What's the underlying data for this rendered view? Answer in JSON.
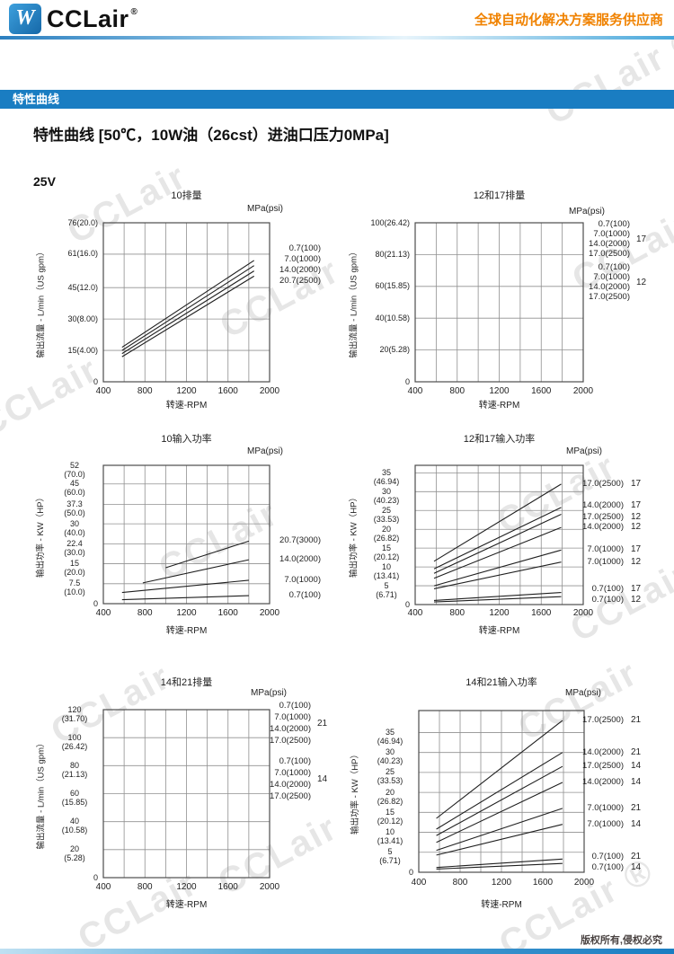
{
  "header": {
    "brand": "CCLair",
    "reg_mark": "®",
    "logo_glyph": "W",
    "tagline": "全球自动化解决方案服务供应商",
    "tagline_color": "#f08200",
    "bar_color": "#1a7dc2"
  },
  "section_bar": {
    "title": "特性曲线"
  },
  "content": {
    "page_title": "特性曲线 [50℃，10W油（26cst）进油口压力0MPa]",
    "model_label": "25V"
  },
  "watermark": {
    "text": "CCLair",
    "reg_mark": "®"
  },
  "footer": {
    "copyright": "版权所有,侵权必究"
  },
  "chart_data": [
    {
      "type": "line",
      "title": "10排量",
      "pressure_unit": "MPa(psi)",
      "xlabel": "转速-RPM",
      "ylabel": "输出流量 - L/min（US gpm）",
      "xlim": [
        400,
        2000
      ],
      "x_grid_step": 200,
      "x_ticks": [
        {
          "v": 400,
          "label": "400"
        },
        {
          "v": 800,
          "label": "800"
        },
        {
          "v": 1200,
          "label": "1200"
        },
        {
          "v": 1600,
          "label": "1600"
        },
        {
          "v": 2000,
          "label": "2000"
        }
      ],
      "ylim": [
        0,
        76
      ],
      "y_ticks": [
        {
          "v": 76,
          "label": "76(20.0)"
        },
        {
          "v": 61,
          "label": "61(16.0)"
        },
        {
          "v": 45,
          "label": "45(12.0)"
        },
        {
          "v": 30,
          "label": "30(8.00)"
        },
        {
          "v": 15,
          "label": "15(4.00)"
        },
        {
          "v": 0,
          "label": "0"
        }
      ],
      "series": [
        {
          "label": "0.7(100)",
          "points": [
            [
              580,
              16.5
            ],
            [
              1850,
              58.0
            ]
          ]
        },
        {
          "label": "7.0(1000)",
          "points": [
            [
              580,
              15.0
            ],
            [
              1850,
              55.5
            ]
          ]
        },
        {
          "label": "14.0(2000)",
          "points": [
            [
              580,
              13.5
            ],
            [
              1850,
              53.0
            ]
          ]
        },
        {
          "label": "20.7(2500)",
          "points": [
            [
              580,
              12.0
            ],
            [
              1850,
              50.5
            ]
          ]
        }
      ],
      "legend": {
        "style": "stack",
        "entries": [
          "0.7(100)",
          "7.0(1000)",
          "14.0(2000)",
          "20.7(2500)"
        ]
      }
    },
    {
      "type": "line",
      "title": "12和17排量",
      "pressure_unit": "MPa(psi)",
      "xlabel": "转速-RPM",
      "ylabel": "输出流量 - L/min（US gpm）",
      "xlim": [
        400,
        2000
      ],
      "x_grid_step": 200,
      "x_ticks": [
        {
          "v": 400,
          "label": "400"
        },
        {
          "v": 800,
          "label": "800"
        },
        {
          "v": 1200,
          "label": "1200"
        },
        {
          "v": 1600,
          "label": "1600"
        },
        {
          "v": 2000,
          "label": "2000"
        }
      ],
      "ylim": [
        0,
        100
      ],
      "y_ticks": [
        {
          "v": 100,
          "label": "100(26.42)"
        },
        {
          "v": 80,
          "label": "80(21.13)"
        },
        {
          "v": 60,
          "label": "60(15.85)"
        },
        {
          "v": 40,
          "label": "40(10.58)"
        },
        {
          "v": 20,
          "label": "20(5.28)"
        },
        {
          "v": 0,
          "label": "0"
        }
      ],
      "series": [],
      "legend": {
        "style": "groups",
        "groups": [
          {
            "code": "17",
            "entries": [
              "0.7(100)",
              "7.0(1000)",
              "14.0(2000)",
              "17.0(2500)"
            ]
          },
          {
            "code": "12",
            "entries": [
              "0.7(100)",
              "7.0(1000)",
              "14.0(2000)",
              "17.0(2500)"
            ]
          }
        ]
      }
    },
    {
      "type": "line",
      "title": "10输入功率",
      "pressure_unit": "MPa(psi)",
      "xlabel": "转速-RPM",
      "ylabel": "输出功率 - KW（HP）",
      "xlim": [
        400,
        2000
      ],
      "x_grid_step": 200,
      "x_ticks": [
        {
          "v": 400,
          "label": "400"
        },
        {
          "v": 800,
          "label": "800"
        },
        {
          "v": 1200,
          "label": "1200"
        },
        {
          "v": 1600,
          "label": "1600"
        },
        {
          "v": 2000,
          "label": "2000"
        }
      ],
      "ylim": [
        0,
        52
      ],
      "y_ticks": [
        {
          "v": 52,
          "label": "52\n(70.0)"
        },
        {
          "v": 45,
          "label": "45\n(60.0)"
        },
        {
          "v": 37.3,
          "label": "37.3\n(50.0)"
        },
        {
          "v": 30,
          "label": "30\n(40.0)"
        },
        {
          "v": 22.4,
          "label": "22.4\n(30.0)"
        },
        {
          "v": 15,
          "label": "15\n(20.0)"
        },
        {
          "v": 7.5,
          "label": "7.5\n(10.0)"
        },
        {
          "v": 0,
          "label": "0"
        }
      ],
      "series": [
        {
          "label": "20.7(3000)",
          "points": [
            [
              1000,
              13.5
            ],
            [
              1800,
              23.5
            ]
          ],
          "label_at": 23.5
        },
        {
          "label": "14.0(2000)",
          "points": [
            [
              780,
              7.8
            ],
            [
              1800,
              16.5
            ]
          ],
          "label_at": 16.5
        },
        {
          "label": "7.0(1000)",
          "points": [
            [
              580,
              4.2
            ],
            [
              1800,
              8.8
            ]
          ],
          "label_at": 8.8
        },
        {
          "label": "0.7(100)",
          "points": [
            [
              580,
              1.5
            ],
            [
              1800,
              3.0
            ]
          ],
          "label_at": 3.0
        }
      ],
      "legend": {
        "style": "aligned"
      }
    },
    {
      "type": "line",
      "title": "12和17输入功率",
      "pressure_unit": "MPa(psi)",
      "xlabel": "转速-RPM",
      "ylabel": "输出功率 - KW（HP）",
      "xlim": [
        400,
        2000
      ],
      "x_grid_step": 200,
      "x_ticks": [
        {
          "v": 400,
          "label": "400"
        },
        {
          "v": 800,
          "label": "800"
        },
        {
          "v": 1200,
          "label": "1200"
        },
        {
          "v": 1600,
          "label": "1600"
        },
        {
          "v": 2000,
          "label": "2000"
        }
      ],
      "ylim": [
        0,
        37
      ],
      "y_ticks": [
        {
          "v": 35,
          "label": "35\n(46.94)"
        },
        {
          "v": 30,
          "label": "30\n(40.23)"
        },
        {
          "v": 25,
          "label": "25\n(33.53)"
        },
        {
          "v": 20,
          "label": "20\n(26.82)"
        },
        {
          "v": 15,
          "label": "15\n(20.12)"
        },
        {
          "v": 10,
          "label": "10\n(13.41)"
        },
        {
          "v": 5,
          "label": "5\n(6.71)"
        },
        {
          "v": 0,
          "label": "0"
        }
      ],
      "series": [
        {
          "label": "17.0(2500)",
          "group": "17",
          "points": [
            [
              580,
              11.5
            ],
            [
              1790,
              32.0
            ]
          ],
          "label_at": 32.0
        },
        {
          "label": "14.0(2000)",
          "group": "17",
          "points": [
            [
              580,
              9.5
            ],
            [
              1790,
              25.8
            ]
          ],
          "label_at": 26.3
        },
        {
          "label": "17.0(2500)",
          "group": "12",
          "points": [
            [
              580,
              8.3
            ],
            [
              1790,
              24.0
            ]
          ],
          "label_at": 23.2
        },
        {
          "label": "14.0(2000)",
          "group": "12",
          "points": [
            [
              580,
              7.0
            ],
            [
              1790,
              20.5
            ]
          ],
          "label_at": 20.5
        },
        {
          "label": "7.0(1000)",
          "group": "17",
          "points": [
            [
              580,
              5.0
            ],
            [
              1790,
              14.5
            ]
          ],
          "label_at": 14.5
        },
        {
          "label": "7.0(1000)",
          "group": "12",
          "points": [
            [
              580,
              4.2
            ],
            [
              1790,
              11.3
            ]
          ],
          "label_at": 11.3
        },
        {
          "label": "0.7(100)",
          "group": "17",
          "points": [
            [
              580,
              1.1
            ],
            [
              1790,
              3.2
            ]
          ],
          "label_at": 4.0
        },
        {
          "label": "0.7(100)",
          "group": "12",
          "points": [
            [
              580,
              0.7
            ],
            [
              1790,
              2.1
            ]
          ],
          "label_at": 1.3
        }
      ],
      "legend": {
        "style": "aligned"
      }
    },
    {
      "type": "line",
      "title": "14和21排量",
      "pressure_unit": "MPa(psi)",
      "xlabel": "转速-RPM",
      "ylabel": "输出流量 - L/min（US gpm）",
      "xlim": [
        400,
        2000
      ],
      "x_grid_step": 200,
      "x_ticks": [
        {
          "v": 400,
          "label": "400"
        },
        {
          "v": 800,
          "label": "800"
        },
        {
          "v": 1200,
          "label": "1200"
        },
        {
          "v": 1600,
          "label": "1600"
        },
        {
          "v": 2000,
          "label": "2000"
        }
      ],
      "ylim": [
        0,
        120
      ],
      "y_ticks": [
        {
          "v": 120,
          "label": "120\n(31.70)"
        },
        {
          "v": 100,
          "label": "100\n(26.42)"
        },
        {
          "v": 80,
          "label": "80\n(21.13)"
        },
        {
          "v": 60,
          "label": "60\n(15.85)"
        },
        {
          "v": 40,
          "label": "40\n(10.58)"
        },
        {
          "v": 20,
          "label": "20\n(5.28)"
        },
        {
          "v": 0,
          "label": "0"
        }
      ],
      "series": [],
      "legend": {
        "style": "groups",
        "groups": [
          {
            "code": "21",
            "entries": [
              "0.7(100)",
              "7.0(1000)",
              "14.0(2000)",
              "17.0(2500)"
            ]
          },
          {
            "code": "14",
            "entries": [
              "0.7(100)",
              "7.0(1000)",
              "14.0(2000)",
              "17.0(2500)"
            ]
          }
        ]
      }
    },
    {
      "type": "line",
      "title": "14和21输入功率",
      "pressure_unit": "MPa(psi)",
      "xlabel": "转速-RPM",
      "ylabel": "输出功率 - KW（HP）",
      "xlim": [
        400,
        2000
      ],
      "x_grid_step": 200,
      "x_ticks": [
        {
          "v": 400,
          "label": "400"
        },
        {
          "v": 800,
          "label": "800"
        },
        {
          "v": 1200,
          "label": "1200"
        },
        {
          "v": 1600,
          "label": "1600"
        },
        {
          "v": 2000,
          "label": "2000"
        }
      ],
      "ylim": [
        0,
        40.5
      ],
      "y_ticks": [
        {
          "v": 35,
          "label": "35\n(46.94)"
        },
        {
          "v": 30,
          "label": "30\n(40.23)"
        },
        {
          "v": 25,
          "label": "25\n(33.53)"
        },
        {
          "v": 20,
          "label": "20\n(26.82)"
        },
        {
          "v": 15,
          "label": "15\n(20.12)"
        },
        {
          "v": 10,
          "label": "10\n(13.41)"
        },
        {
          "v": 5,
          "label": "5\n(6.71)"
        },
        {
          "v": 0,
          "label": "0"
        }
      ],
      "series": [
        {
          "label": "17.0(2500)",
          "group": "21",
          "points": [
            [
              570,
              13.5
            ],
            [
              1790,
              38.0
            ]
          ],
          "label_at": 38.0
        },
        {
          "label": "14.0(2000)",
          "group": "21",
          "points": [
            [
              570,
              10.8
            ],
            [
              1790,
              30.0
            ]
          ],
          "label_at": 30.0
        },
        {
          "label": "17.0(2500)",
          "group": "14",
          "points": [
            [
              570,
              9.2
            ],
            [
              1790,
              26.5
            ]
          ],
          "label_at": 26.5
        },
        {
          "label": "14.0(2000)",
          "group": "14",
          "points": [
            [
              570,
              7.5
            ],
            [
              1790,
              22.5
            ]
          ],
          "label_at": 22.5
        },
        {
          "label": "7.0(1000)",
          "group": "21",
          "points": [
            [
              570,
              5.5
            ],
            [
              1790,
              16.0
            ]
          ],
          "label_at": 16.0
        },
        {
          "label": "7.0(1000)",
          "group": "14",
          "points": [
            [
              570,
              4.3
            ],
            [
              1790,
              12.0
            ]
          ],
          "label_at": 12.0
        },
        {
          "label": "0.7(100)",
          "group": "21",
          "points": [
            [
              570,
              1.2
            ],
            [
              1790,
              3.3
            ]
          ],
          "label_at": 3.8
        },
        {
          "label": "0.7(100)",
          "group": "14",
          "points": [
            [
              570,
              0.8
            ],
            [
              1790,
              2.2
            ]
          ],
          "label_at": 1.2
        }
      ],
      "legend": {
        "style": "aligned"
      }
    }
  ]
}
